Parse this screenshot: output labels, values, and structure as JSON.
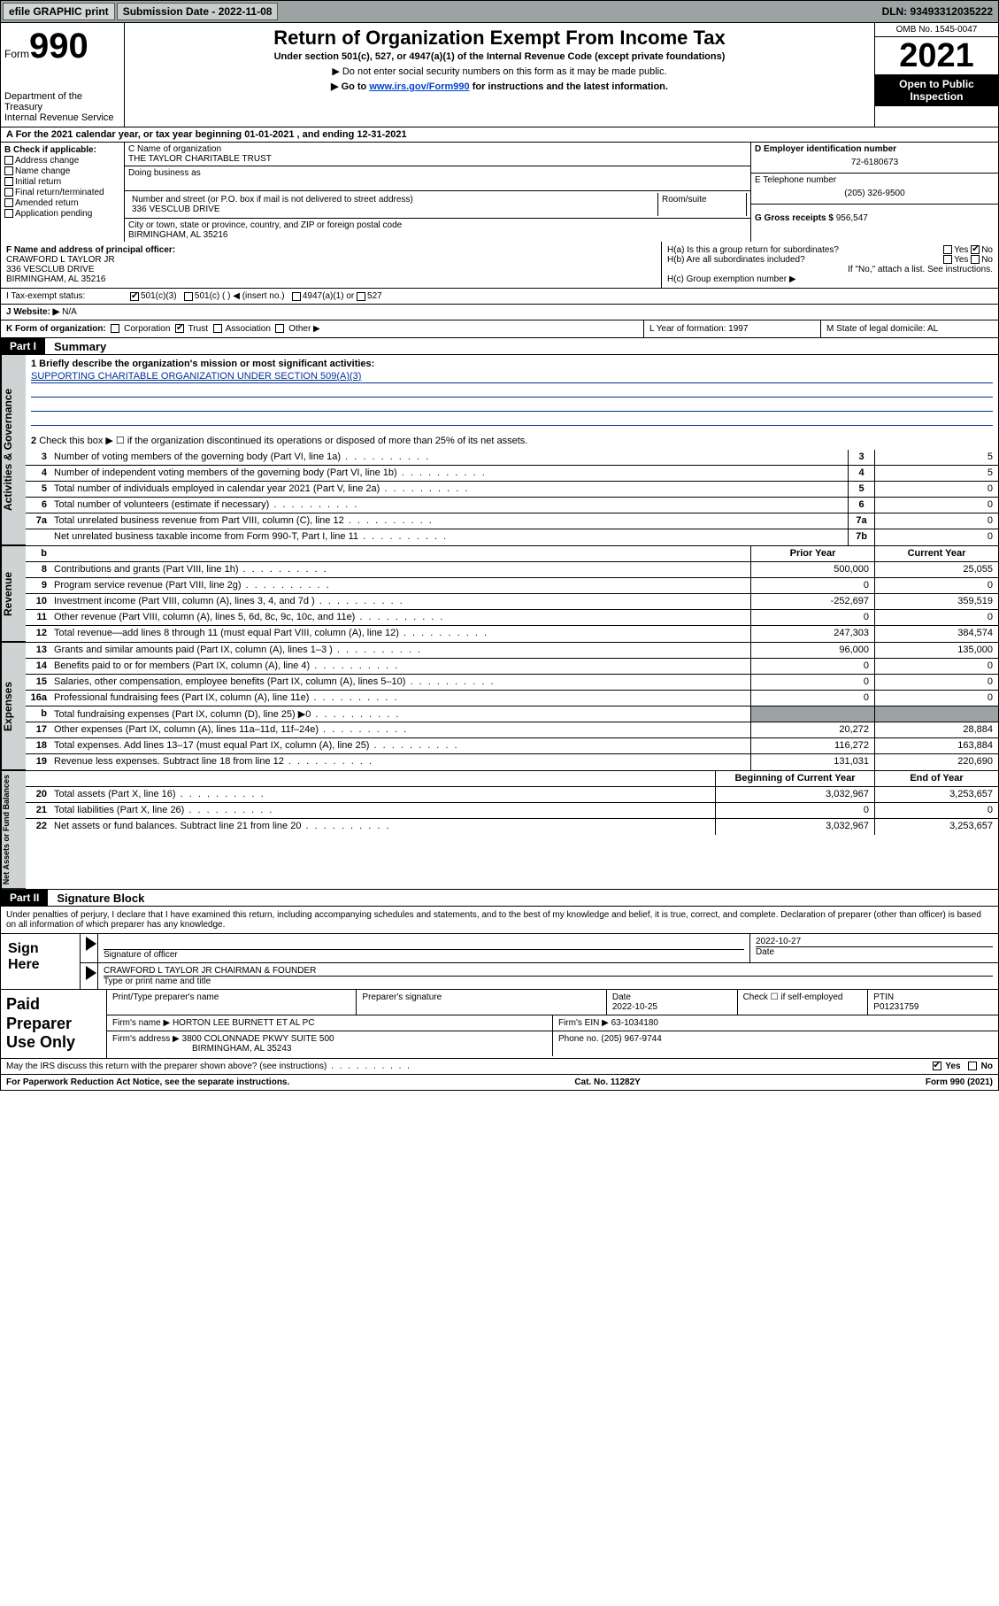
{
  "topbar": {
    "efile": "efile GRAPHIC print",
    "submission_label": "Submission Date - 2022-11-08",
    "dln": "DLN: 93493312035222"
  },
  "header": {
    "form_word": "Form",
    "form_num": "990",
    "dept": "Department of the Treasury",
    "irs": "Internal Revenue Service",
    "title": "Return of Organization Exempt From Income Tax",
    "sub": "Under section 501(c), 527, or 4947(a)(1) of the Internal Revenue Code (except private foundations)",
    "note1": "▶ Do not enter social security numbers on this form as it may be made public.",
    "note2_pre": "▶ Go to ",
    "note2_link": "www.irs.gov/Form990",
    "note2_post": " for instructions and the latest information.",
    "omb": "OMB No. 1545-0047",
    "year": "2021",
    "inspection": "Open to Public Inspection"
  },
  "row_a": "A For the 2021 calendar year, or tax year beginning 01-01-2021   , and ending 12-31-2021",
  "col_b": {
    "label": "B Check if applicable:",
    "items": [
      "Address change",
      "Name change",
      "Initial return",
      "Final return/terminated",
      "Amended return",
      "Application pending"
    ]
  },
  "col_c": {
    "name_label": "C Name of organization",
    "name": "THE TAYLOR CHARITABLE TRUST",
    "dba_label": "Doing business as",
    "street_label": "Number and street (or P.O. box if mail is not delivered to street address)",
    "room_label": "Room/suite",
    "street": "336 VESCLUB DRIVE",
    "city_label": "City or town, state or province, country, and ZIP or foreign postal code",
    "city": "BIRMINGHAM, AL  35216"
  },
  "col_d": {
    "ein_label": "D Employer identification number",
    "ein": "72-6180673",
    "phone_label": "E Telephone number",
    "phone": "(205) 326-9500",
    "gross_label": "G Gross receipts $",
    "gross": "956,547"
  },
  "fgh": {
    "f_label": "F Name and address of principal officer:",
    "f_name": "CRAWFORD L TAYLOR JR",
    "f_addr1": "336 VESCLUB DRIVE",
    "f_addr2": "BIRMINGHAM, AL  35216",
    "ha": "H(a)  Is this a group return for subordinates?",
    "hb": "H(b)  Are all subordinates included?",
    "hb_note": "If \"No,\" attach a list. See instructions.",
    "hc": "H(c)  Group exemption number ▶",
    "yes": "Yes",
    "no": "No"
  },
  "row_i": {
    "label": "I   Tax-exempt status:",
    "opt1": "501(c)(3)",
    "opt2": "501(c) (  ) ◀ (insert no.)",
    "opt3": "4947(a)(1) or",
    "opt4": "527"
  },
  "row_j": {
    "label": "J  Website: ▶",
    "val": "N/A"
  },
  "row_k": {
    "label": "K Form of organization:",
    "opts": [
      "Corporation",
      "Trust",
      "Association",
      "Other ▶"
    ],
    "l": "L Year of formation: 1997",
    "m": "M State of legal domicile: AL"
  },
  "part1": {
    "tag": "Part I",
    "title": "Summary",
    "briefly_label": "1   Briefly describe the organization's mission or most significant activities:",
    "briefly": "SUPPORTING CHARITABLE ORGANIZATION UNDER SECTION 509(A)(3)",
    "line2": "Check this box ▶ ☐  if the organization discontinued its operations or disposed of more than 25% of its net assets."
  },
  "gov_lines": [
    {
      "n": "3",
      "d": "Number of voting members of the governing body (Part VI, line 1a)",
      "b": "3",
      "v": "5"
    },
    {
      "n": "4",
      "d": "Number of independent voting members of the governing body (Part VI, line 1b)",
      "b": "4",
      "v": "5"
    },
    {
      "n": "5",
      "d": "Total number of individuals employed in calendar year 2021 (Part V, line 2a)",
      "b": "5",
      "v": "0"
    },
    {
      "n": "6",
      "d": "Total number of volunteers (estimate if necessary)",
      "b": "6",
      "v": "0"
    },
    {
      "n": "7a",
      "d": "Total unrelated business revenue from Part VIII, column (C), line 12",
      "b": "7a",
      "v": "0"
    },
    {
      "n": "",
      "d": "Net unrelated business taxable income from Form 990-T, Part I, line 11",
      "b": "7b",
      "v": "0"
    }
  ],
  "two_col_hdr": {
    "b": "b",
    "prior": "Prior Year",
    "current": "Current Year"
  },
  "rev_lines": [
    {
      "n": "8",
      "d": "Contributions and grants (Part VIII, line 1h)",
      "p": "500,000",
      "c": "25,055"
    },
    {
      "n": "9",
      "d": "Program service revenue (Part VIII, line 2g)",
      "p": "0",
      "c": "0"
    },
    {
      "n": "10",
      "d": "Investment income (Part VIII, column (A), lines 3, 4, and 7d )",
      "p": "-252,697",
      "c": "359,519"
    },
    {
      "n": "11",
      "d": "Other revenue (Part VIII, column (A), lines 5, 6d, 8c, 9c, 10c, and 11e)",
      "p": "0",
      "c": "0"
    },
    {
      "n": "12",
      "d": "Total revenue—add lines 8 through 11 (must equal Part VIII, column (A), line 12)",
      "p": "247,303",
      "c": "384,574"
    }
  ],
  "exp_lines": [
    {
      "n": "13",
      "d": "Grants and similar amounts paid (Part IX, column (A), lines 1–3 )",
      "p": "96,000",
      "c": "135,000"
    },
    {
      "n": "14",
      "d": "Benefits paid to or for members (Part IX, column (A), line 4)",
      "p": "0",
      "c": "0"
    },
    {
      "n": "15",
      "d": "Salaries, other compensation, employee benefits (Part IX, column (A), lines 5–10)",
      "p": "0",
      "c": "0"
    },
    {
      "n": "16a",
      "d": "Professional fundraising fees (Part IX, column (A), line 11e)",
      "p": "0",
      "c": "0"
    },
    {
      "n": "b",
      "d": "Total fundraising expenses (Part IX, column (D), line 25) ▶0",
      "p": "",
      "c": "",
      "shade": true
    },
    {
      "n": "17",
      "d": "Other expenses (Part IX, column (A), lines 11a–11d, 11f–24e)",
      "p": "20,272",
      "c": "28,884"
    },
    {
      "n": "18",
      "d": "Total expenses. Add lines 13–17 (must equal Part IX, column (A), line 25)",
      "p": "116,272",
      "c": "163,884"
    },
    {
      "n": "19",
      "d": "Revenue less expenses. Subtract line 18 from line 12",
      "p": "131,031",
      "c": "220,690"
    }
  ],
  "na_hdr": {
    "prior": "Beginning of Current Year",
    "current": "End of Year"
  },
  "na_lines": [
    {
      "n": "20",
      "d": "Total assets (Part X, line 16)",
      "p": "3,032,967",
      "c": "3,253,657"
    },
    {
      "n": "21",
      "d": "Total liabilities (Part X, line 26)",
      "p": "0",
      "c": "0"
    },
    {
      "n": "22",
      "d": "Net assets or fund balances. Subtract line 21 from line 20",
      "p": "3,032,967",
      "c": "3,253,657"
    }
  ],
  "vtabs": {
    "gov": "Activities & Governance",
    "rev": "Revenue",
    "exp": "Expenses",
    "na": "Net Assets or Fund Balances"
  },
  "part2": {
    "tag": "Part II",
    "title": "Signature Block",
    "decl": "Under penalties of perjury, I declare that I have examined this return, including accompanying schedules and statements, and to the best of my knowledge and belief, it is true, correct, and complete. Declaration of preparer (other than officer) is based on all information of which preparer has any knowledge."
  },
  "sign": {
    "here": "Sign Here",
    "sig_label": "Signature of officer",
    "date_label": "Date",
    "date": "2022-10-27",
    "name": "CRAWFORD L TAYLOR JR  CHAIRMAN & FOUNDER",
    "name_label": "Type or print name and title"
  },
  "paid": {
    "label": "Paid Preparer Use Only",
    "h1": "Print/Type preparer's name",
    "h2": "Preparer's signature",
    "h3": "Date",
    "h3v": "2022-10-25",
    "h4": "Check ☐ if self-employed",
    "h5": "PTIN",
    "h5v": "P01231759",
    "firm_label": "Firm's name    ▶",
    "firm": "HORTON LEE BURNETT ET AL PC",
    "ein_label": "Firm's EIN ▶",
    "ein": "63-1034180",
    "addr_label": "Firm's address ▶",
    "addr1": "3800 COLONNADE PKWY SUITE 500",
    "addr2": "BIRMINGHAM, AL  35243",
    "phone_label": "Phone no.",
    "phone": "(205) 967-9744"
  },
  "discuss": {
    "q": "May the IRS discuss this return with the preparer shown above? (see instructions)",
    "yes": "Yes",
    "no": "No"
  },
  "footer": {
    "l": "For Paperwork Reduction Act Notice, see the separate instructions.",
    "m": "Cat. No. 11282Y",
    "r": "Form 990 (2021)"
  },
  "colors": {
    "bg_gray": "#9ca3a3",
    "tab_gray": "#cfd3d3",
    "link": "#0044cc",
    "uline": "#003399"
  }
}
